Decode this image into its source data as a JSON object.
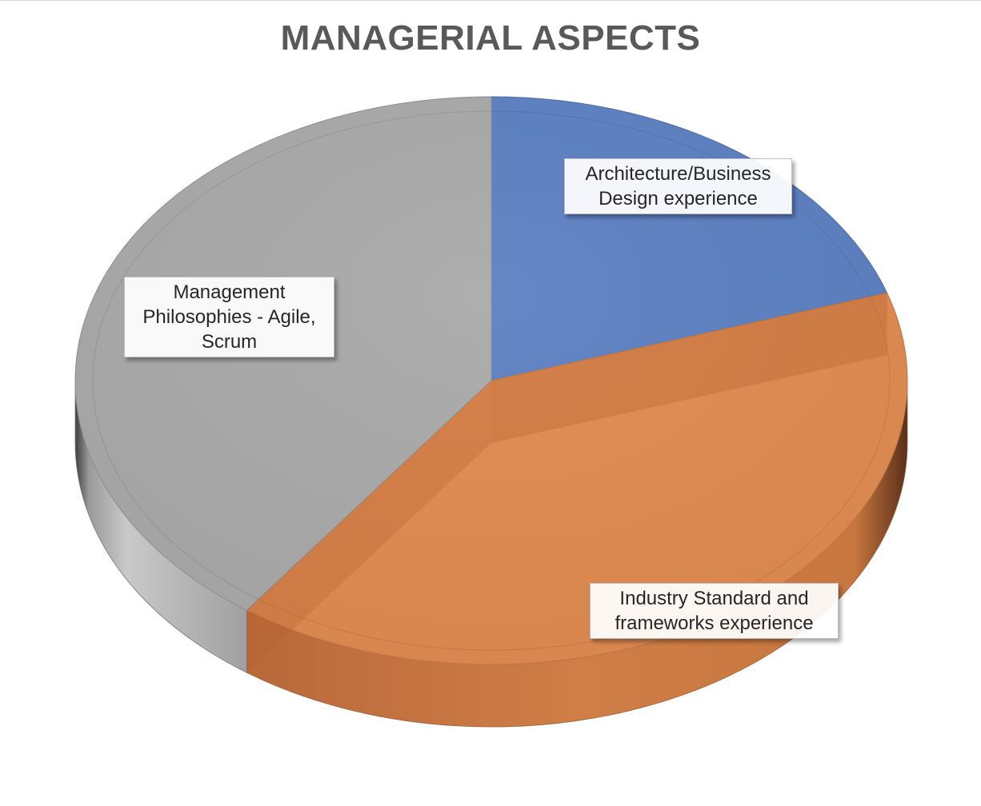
{
  "chart_data": {
    "type": "pie",
    "title": "MANAGERIAL ASPECTS",
    "style": "3d",
    "categories": [
      "Architecture/Business Design experience",
      "Industry Standard and frameworks experience",
      "Management Philosophies - Agile, Scrum"
    ],
    "values": [
      20,
      40,
      40
    ],
    "colors": [
      "#5b7fc1",
      "#e08b50",
      "#a9a9a9"
    ],
    "label_lines": [
      [
        "Architecture/Business",
        "Design experience"
      ],
      [
        "Industry Standard and",
        "frameworks experience"
      ],
      [
        "Management",
        "Philosophies - Agile,",
        "Scrum"
      ]
    ],
    "legend": "none"
  }
}
